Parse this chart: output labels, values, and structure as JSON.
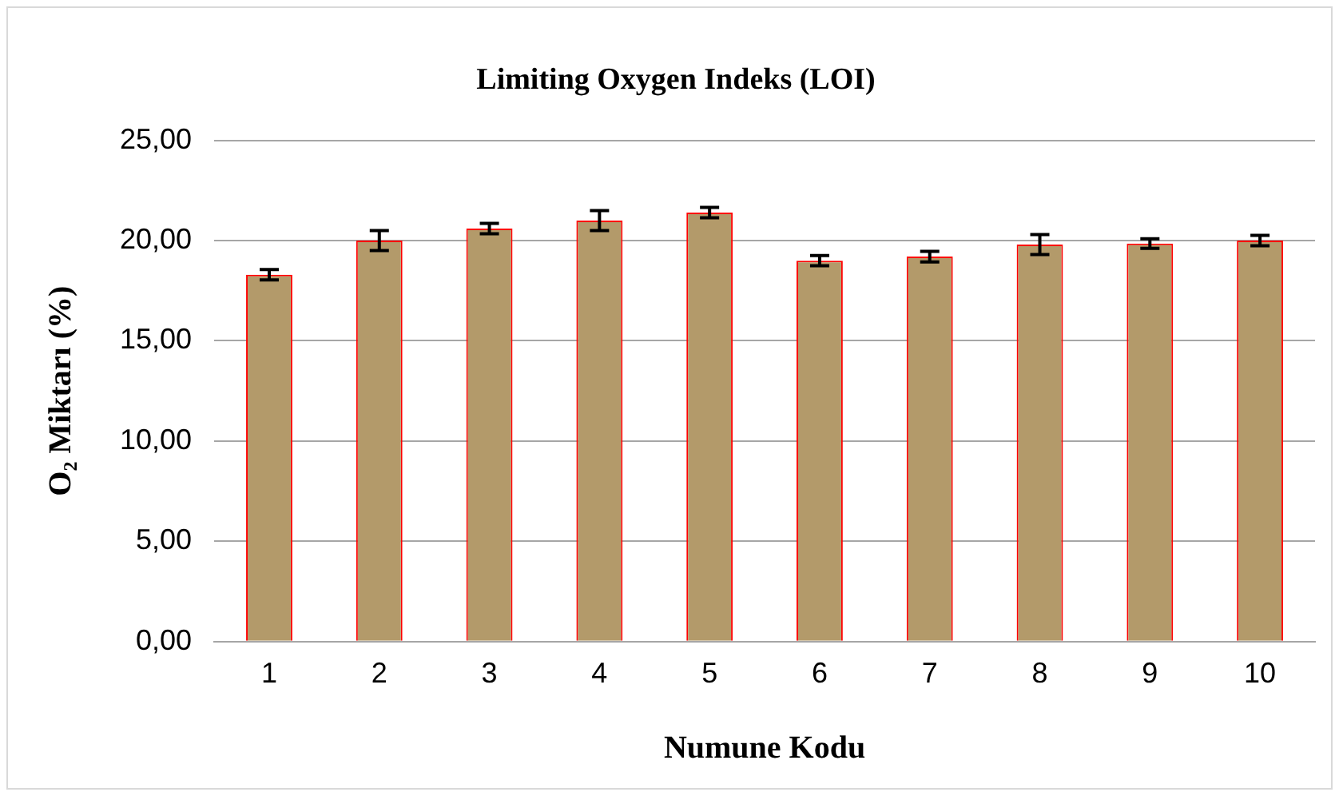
{
  "chart_data": {
    "type": "bar",
    "title": "Limiting Oxygen Indeks (LOI)",
    "xlabel": "Numune Kodu",
    "ylabel": "O₂ Miktarı (%)",
    "categories": [
      "1",
      "2",
      "3",
      "4",
      "5",
      "6",
      "7",
      "8",
      "9",
      "10"
    ],
    "values": [
      18.3,
      20.0,
      20.6,
      21.0,
      21.4,
      19.0,
      19.2,
      19.8,
      19.85,
      20.0
    ],
    "errors": [
      0.26,
      0.5,
      0.26,
      0.5,
      0.26,
      0.25,
      0.26,
      0.5,
      0.24,
      0.26
    ],
    "color": "#b39a6a",
    "ylim": [
      0,
      25
    ],
    "yticks": [
      {
        "value": 0,
        "label": "0,00"
      },
      {
        "value": 5,
        "label": "5,00"
      },
      {
        "value": 10,
        "label": "10,00"
      },
      {
        "value": 15,
        "label": "15,00"
      },
      {
        "value": 20,
        "label": "20,00"
      },
      {
        "value": 25,
        "label": "25,00"
      }
    ],
    "grid": "y",
    "legend": false
  }
}
